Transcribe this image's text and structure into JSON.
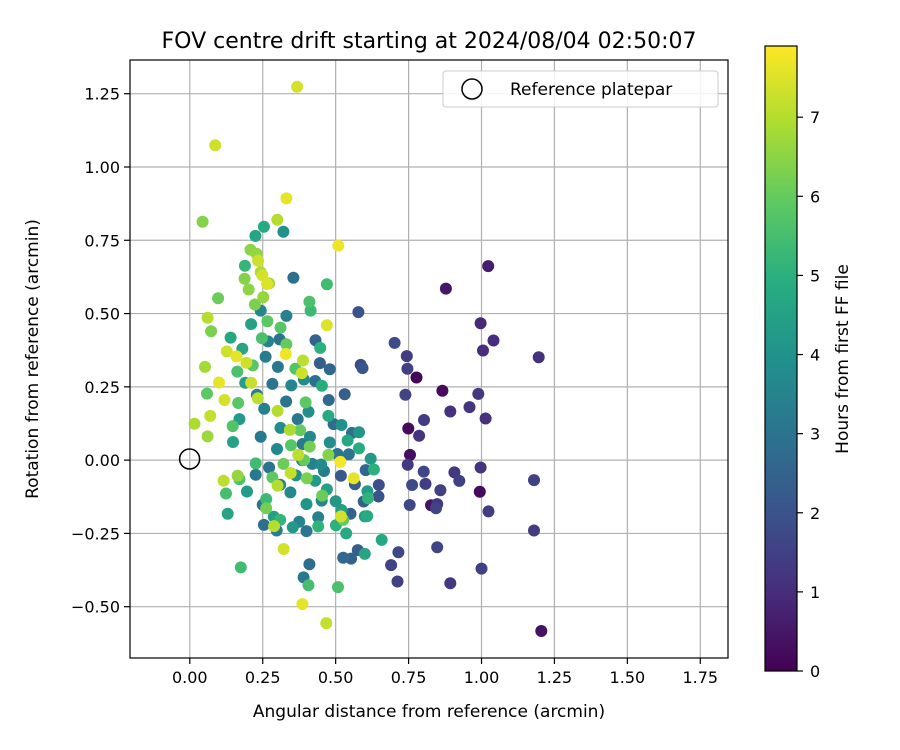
{
  "chart_data": {
    "type": "scatter",
    "title": "FOV centre drift starting at 2024/08/04 02:50:07",
    "xlabel": "Angular distance from reference (arcmin)",
    "ylabel": "Rotation from reference (arcmin)",
    "xlim": [
      -0.205,
      1.845
    ],
    "ylim": [
      -0.675,
      1.365
    ],
    "xticks": [
      0.0,
      0.25,
      0.5,
      0.75,
      1.0,
      1.25,
      1.5,
      1.75
    ],
    "xtick_labels": [
      "0.00",
      "0.25",
      "0.50",
      "0.75",
      "1.00",
      "1.25",
      "1.50",
      "1.75"
    ],
    "yticks": [
      -0.5,
      -0.25,
      0.0,
      0.25,
      0.5,
      0.75,
      1.0,
      1.25
    ],
    "ytick_labels": [
      "−0.50",
      "−0.25",
      "0.00",
      "0.25",
      "0.50",
      "0.75",
      "1.00",
      "1.25"
    ],
    "grid": true,
    "legend": {
      "position": "top-right",
      "entries": [
        "Reference platepar"
      ]
    },
    "colorbar": {
      "label": "Hours from first FF file",
      "colormap": "viridis",
      "range": [
        0,
        7.9
      ],
      "ticks": [
        0,
        1,
        2,
        3,
        4,
        5,
        6,
        7
      ],
      "tick_labels": [
        "0",
        "1",
        "2",
        "3",
        "4",
        "5",
        "6",
        "7"
      ]
    },
    "reference_point": {
      "x": 0.0,
      "y": 0.0,
      "name": "Reference platepar"
    },
    "points": [
      {
        "x": 0.878,
        "y": 0.585,
        "c": 0.5
      },
      {
        "x": 1.023,
        "y": 0.662,
        "c": 0.6
      },
      {
        "x": 0.777,
        "y": 0.282,
        "c": 0.1
      },
      {
        "x": 0.749,
        "y": 0.108,
        "c": 0.2
      },
      {
        "x": 0.755,
        "y": 0.018,
        "c": 0.3
      },
      {
        "x": 0.866,
        "y": 0.237,
        "c": 0.2
      },
      {
        "x": 0.994,
        "y": -0.108,
        "c": 0.2
      },
      {
        "x": 0.827,
        "y": -0.154,
        "c": 0.4
      },
      {
        "x": 1.205,
        "y": -0.583,
        "c": 0.4
      },
      {
        "x": 0.997,
        "y": 0.467,
        "c": 0.9
      },
      {
        "x": 1.041,
        "y": 0.408,
        "c": 1.0
      },
      {
        "x": 1.005,
        "y": 0.374,
        "c": 1.0
      },
      {
        "x": 1.196,
        "y": 0.351,
        "c": 1.1
      },
      {
        "x": 0.989,
        "y": 0.226,
        "c": 1.3
      },
      {
        "x": 0.959,
        "y": 0.181,
        "c": 1.2
      },
      {
        "x": 0.893,
        "y": 0.166,
        "c": 1.1
      },
      {
        "x": 1.014,
        "y": 0.142,
        "c": 1.1
      },
      {
        "x": 0.803,
        "y": 0.137,
        "c": 1.4
      },
      {
        "x": 0.746,
        "y": 0.312,
        "c": 1.5
      },
      {
        "x": 0.744,
        "y": 0.355,
        "c": 1.4
      },
      {
        "x": 0.739,
        "y": 0.223,
        "c": 1.6
      },
      {
        "x": 0.786,
        "y": 0.083,
        "c": 1.2
      },
      {
        "x": 0.747,
        "y": -0.016,
        "c": 1.3
      },
      {
        "x": 0.808,
        "y": -0.081,
        "c": 1.4
      },
      {
        "x": 0.848,
        "y": -0.15,
        "c": 1.3
      },
      {
        "x": 0.859,
        "y": -0.103,
        "c": 1.5
      },
      {
        "x": 0.907,
        "y": -0.042,
        "c": 1.3
      },
      {
        "x": 0.924,
        "y": -0.071,
        "c": 1.5
      },
      {
        "x": 0.997,
        "y": -0.025,
        "c": 1.2
      },
      {
        "x": 1.024,
        "y": -0.175,
        "c": 1.4
      },
      {
        "x": 1.18,
        "y": -0.068,
        "c": 1.5
      },
      {
        "x": 1.18,
        "y": -0.24,
        "c": 1.4
      },
      {
        "x": 1.0,
        "y": -0.37,
        "c": 1.5
      },
      {
        "x": 0.893,
        "y": -0.42,
        "c": 1.3
      },
      {
        "x": 0.848,
        "y": -0.297,
        "c": 1.6
      },
      {
        "x": 0.712,
        "y": -0.414,
        "c": 1.5
      },
      {
        "x": 0.715,
        "y": -0.314,
        "c": 1.7
      },
      {
        "x": 0.69,
        "y": -0.358,
        "c": 1.6
      },
      {
        "x": 0.702,
        "y": 0.4,
        "c": 1.8
      },
      {
        "x": 0.586,
        "y": 0.325,
        "c": 1.8
      },
      {
        "x": 0.844,
        "y": -0.164,
        "c": 1.6
      },
      {
        "x": 0.754,
        "y": -0.153,
        "c": 1.7
      },
      {
        "x": 0.762,
        "y": -0.085,
        "c": 1.8
      },
      {
        "x": 0.802,
        "y": -0.039,
        "c": 1.7
      },
      {
        "x": 0.648,
        "y": -0.085,
        "c": 1.9
      },
      {
        "x": 0.647,
        "y": -0.124,
        "c": 2.0
      },
      {
        "x": 0.592,
        "y": 0.314,
        "c": 2.1
      },
      {
        "x": 0.578,
        "y": 0.505,
        "c": 2.0
      },
      {
        "x": 0.446,
        "y": 0.331,
        "c": 2.4
      },
      {
        "x": 0.431,
        "y": 0.409,
        "c": 2.5
      },
      {
        "x": 0.355,
        "y": 0.622,
        "c": 2.9
      },
      {
        "x": 0.518,
        "y": -0.053,
        "c": 2.2
      },
      {
        "x": 0.566,
        "y": -0.082,
        "c": 2.3
      },
      {
        "x": 0.596,
        "y": -0.141,
        "c": 2.4
      },
      {
        "x": 0.603,
        "y": -0.034,
        "c": 2.6
      },
      {
        "x": 0.551,
        "y": -0.183,
        "c": 2.5
      },
      {
        "x": 0.576,
        "y": -0.307,
        "c": 2.3
      },
      {
        "x": 0.553,
        "y": -0.336,
        "c": 2.5
      },
      {
        "x": 0.526,
        "y": -0.333,
        "c": 2.7
      },
      {
        "x": 0.41,
        "y": -0.355,
        "c": 2.8
      },
      {
        "x": 0.39,
        "y": -0.4,
        "c": 3.2
      },
      {
        "x": 0.531,
        "y": 0.225,
        "c": 2.4
      },
      {
        "x": 0.48,
        "y": 0.31,
        "c": 2.6
      },
      {
        "x": 0.476,
        "y": 0.205,
        "c": 2.7
      },
      {
        "x": 0.43,
        "y": 0.27,
        "c": 2.9
      },
      {
        "x": 0.493,
        "y": 0.123,
        "c": 2.8
      },
      {
        "x": 0.556,
        "y": 0.093,
        "c": 2.9
      },
      {
        "x": 0.545,
        "y": 0.02,
        "c": 3.0
      },
      {
        "x": 0.506,
        "y": 0.021,
        "c": 3.1
      },
      {
        "x": 0.46,
        "y": -0.037,
        "c": 3.3
      },
      {
        "x": 0.42,
        "y": -0.013,
        "c": 3.4
      },
      {
        "x": 0.387,
        "y": 0.055,
        "c": 3.2
      },
      {
        "x": 0.37,
        "y": 0.14,
        "c": 3.1
      },
      {
        "x": 0.33,
        "y": 0.2,
        "c": 3.0
      },
      {
        "x": 0.302,
        "y": 0.318,
        "c": 3.2
      },
      {
        "x": 0.308,
        "y": 0.412,
        "c": 3.0
      },
      {
        "x": 0.331,
        "y": 0.492,
        "c": 3.4
      },
      {
        "x": 0.321,
        "y": 0.779,
        "c": 4.0
      },
      {
        "x": 0.243,
        "y": 0.51,
        "c": 3.6
      },
      {
        "x": 0.268,
        "y": 0.405,
        "c": 3.5
      },
      {
        "x": 0.26,
        "y": 0.353,
        "c": 3.3
      },
      {
        "x": 0.283,
        "y": 0.26,
        "c": 3.1
      },
      {
        "x": 0.23,
        "y": 0.223,
        "c": 3.3
      },
      {
        "x": 0.255,
        "y": 0.175,
        "c": 3.4
      },
      {
        "x": 0.243,
        "y": 0.08,
        "c": 3.2
      },
      {
        "x": 0.272,
        "y": -0.025,
        "c": 3.0
      },
      {
        "x": 0.226,
        "y": -0.05,
        "c": 3.2
      },
      {
        "x": 0.25,
        "y": -0.152,
        "c": 3.0
      },
      {
        "x": 0.254,
        "y": -0.221,
        "c": 2.9
      },
      {
        "x": 0.298,
        "y": -0.24,
        "c": 3.3
      },
      {
        "x": 0.375,
        "y": -0.21,
        "c": 3.5
      },
      {
        "x": 0.4,
        "y": -0.242,
        "c": 3.1
      },
      {
        "x": 0.44,
        "y": -0.195,
        "c": 3.4
      },
      {
        "x": 0.452,
        "y": -0.138,
        "c": 3.6
      },
      {
        "x": 0.345,
        "y": -0.11,
        "c": 3.7
      },
      {
        "x": 0.31,
        "y": -0.084,
        "c": 3.5
      },
      {
        "x": 0.299,
        "y": 0.038,
        "c": 3.7
      },
      {
        "x": 0.311,
        "y": 0.11,
        "c": 3.8
      },
      {
        "x": 0.348,
        "y": 0.255,
        "c": 3.6
      },
      {
        "x": 0.391,
        "y": 0.275,
        "c": 3.8
      },
      {
        "x": 0.407,
        "y": 0.165,
        "c": 3.9
      },
      {
        "x": 0.412,
        "y": 0.08,
        "c": 3.7
      },
      {
        "x": 0.385,
        "y": 0.0,
        "c": 3.5
      },
      {
        "x": 0.364,
        "y": -0.052,
        "c": 3.9
      },
      {
        "x": 0.45,
        "y": -0.015,
        "c": 3.8
      },
      {
        "x": 0.48,
        "y": 0.06,
        "c": 3.9
      },
      {
        "x": 0.52,
        "y": 0.12,
        "c": 4.0
      },
      {
        "x": 0.58,
        "y": 0.095,
        "c": 4.1
      },
      {
        "x": 0.62,
        "y": 0.005,
        "c": 4.2
      },
      {
        "x": 0.609,
        "y": -0.106,
        "c": 4.3
      },
      {
        "x": 0.6,
        "y": -0.192,
        "c": 4.4
      },
      {
        "x": 0.52,
        "y": -0.17,
        "c": 4.4
      },
      {
        "x": 0.5,
        "y": -0.14,
        "c": 4.2
      },
      {
        "x": 0.47,
        "y": -0.1,
        "c": 4.5
      },
      {
        "x": 0.43,
        "y": -0.07,
        "c": 4.3
      },
      {
        "x": 0.4,
        "y": -0.15,
        "c": 4.1
      },
      {
        "x": 0.353,
        "y": -0.229,
        "c": 4.2
      },
      {
        "x": 0.288,
        "y": -0.193,
        "c": 4.4
      },
      {
        "x": 0.196,
        "y": -0.107,
        "c": 4.3
      },
      {
        "x": 0.13,
        "y": -0.183,
        "c": 4.6
      },
      {
        "x": 0.148,
        "y": 0.062,
        "c": 4.5
      },
      {
        "x": 0.17,
        "y": 0.14,
        "c": 4.3
      },
      {
        "x": 0.19,
        "y": 0.264,
        "c": 4.4
      },
      {
        "x": 0.18,
        "y": 0.38,
        "c": 4.6
      },
      {
        "x": 0.14,
        "y": 0.418,
        "c": 4.7
      },
      {
        "x": 0.21,
        "y": 0.464,
        "c": 4.5
      },
      {
        "x": 0.254,
        "y": 0.796,
        "c": 4.8
      },
      {
        "x": 0.225,
        "y": 0.765,
        "c": 4.6
      },
      {
        "x": 0.189,
        "y": 0.663,
        "c": 5.2
      },
      {
        "x": 0.414,
        "y": 0.51,
        "c": 5.3
      },
      {
        "x": 0.47,
        "y": 0.6,
        "c": 5.4
      },
      {
        "x": 0.41,
        "y": 0.54,
        "c": 5.6
      },
      {
        "x": 0.447,
        "y": 0.383,
        "c": 5.0
      },
      {
        "x": 0.453,
        "y": 0.254,
        "c": 4.9
      },
      {
        "x": 0.475,
        "y": 0.151,
        "c": 4.8
      },
      {
        "x": 0.541,
        "y": 0.067,
        "c": 4.7
      },
      {
        "x": 0.58,
        "y": 0.04,
        "c": 4.9
      },
      {
        "x": 0.631,
        "y": -0.032,
        "c": 5.0
      },
      {
        "x": 0.611,
        "y": -0.13,
        "c": 5.1
      },
      {
        "x": 0.608,
        "y": -0.191,
        "c": 4.8
      },
      {
        "x": 0.658,
        "y": -0.272,
        "c": 4.7
      },
      {
        "x": 0.6,
        "y": -0.32,
        "c": 4.6
      },
      {
        "x": 0.536,
        "y": -0.25,
        "c": 4.8
      },
      {
        "x": 0.501,
        "y": -0.222,
        "c": 5.0
      },
      {
        "x": 0.44,
        "y": -0.226,
        "c": 5.1
      },
      {
        "x": 0.31,
        "y": -0.204,
        "c": 5.2
      },
      {
        "x": 0.262,
        "y": -0.133,
        "c": 5.3
      },
      {
        "x": 0.226,
        "y": -0.011,
        "c": 5.4
      },
      {
        "x": 0.17,
        "y": -0.065,
        "c": 5.6
      },
      {
        "x": 0.124,
        "y": -0.114,
        "c": 5.5
      },
      {
        "x": 0.147,
        "y": 0.116,
        "c": 5.7
      },
      {
        "x": 0.166,
        "y": 0.195,
        "c": 5.8
      },
      {
        "x": 0.163,
        "y": 0.302,
        "c": 5.6
      },
      {
        "x": 0.216,
        "y": 0.323,
        "c": 5.8
      },
      {
        "x": 0.247,
        "y": 0.416,
        "c": 5.6
      },
      {
        "x": 0.266,
        "y": 0.474,
        "c": 5.9
      },
      {
        "x": 0.311,
        "y": 0.452,
        "c": 5.8
      },
      {
        "x": 0.331,
        "y": 0.395,
        "c": 6.0
      },
      {
        "x": 0.362,
        "y": 0.312,
        "c": 5.7
      },
      {
        "x": 0.397,
        "y": 0.197,
        "c": 5.9
      },
      {
        "x": 0.378,
        "y": 0.102,
        "c": 6.0
      },
      {
        "x": 0.347,
        "y": 0.051,
        "c": 5.8
      },
      {
        "x": 0.321,
        "y": -0.013,
        "c": 6.1
      },
      {
        "x": 0.283,
        "y": -0.059,
        "c": 5.9
      },
      {
        "x": 0.262,
        "y": -0.164,
        "c": 6.2
      },
      {
        "x": 0.175,
        "y": -0.366,
        "c": 5.4
      },
      {
        "x": 0.407,
        "y": -0.427,
        "c": 5.5
      },
      {
        "x": 0.508,
        "y": -0.433,
        "c": 5.6
      },
      {
        "x": 0.526,
        "y": -0.204,
        "c": 6.0
      },
      {
        "x": 0.454,
        "y": -0.121,
        "c": 6.1
      },
      {
        "x": 0.401,
        "y": -0.062,
        "c": 6.3
      },
      {
        "x": 0.392,
        "y": 0.0,
        "c": 6.0
      },
      {
        "x": 0.411,
        "y": 0.046,
        "c": 6.2
      },
      {
        "x": 0.475,
        "y": 0.018,
        "c": 6.4
      },
      {
        "x": 0.059,
        "y": 0.227,
        "c": 5.9
      },
      {
        "x": 0.073,
        "y": 0.44,
        "c": 6.3
      },
      {
        "x": 0.097,
        "y": 0.552,
        "c": 6.1
      },
      {
        "x": 0.044,
        "y": 0.813,
        "c": 6.4
      },
      {
        "x": 0.208,
        "y": 0.718,
        "c": 6.5
      },
      {
        "x": 0.188,
        "y": 0.619,
        "c": 6.4
      },
      {
        "x": 0.202,
        "y": 0.582,
        "c": 6.5
      },
      {
        "x": 0.223,
        "y": 0.531,
        "c": 6.3
      },
      {
        "x": 0.252,
        "y": 0.556,
        "c": 6.6
      },
      {
        "x": 0.272,
        "y": 0.603,
        "c": 6.8
      },
      {
        "x": 0.243,
        "y": 0.641,
        "c": 6.9
      },
      {
        "x": 0.229,
        "y": 0.704,
        "c": 6.6
      },
      {
        "x": 0.3,
        "y": 0.82,
        "c": 7.0
      },
      {
        "x": 0.087,
        "y": 1.074,
        "c": 7.3
      },
      {
        "x": 0.368,
        "y": 1.274,
        "c": 7.4
      },
      {
        "x": 0.331,
        "y": 0.893,
        "c": 7.6
      },
      {
        "x": 0.509,
        "y": 0.732,
        "c": 7.7
      },
      {
        "x": 0.234,
        "y": 0.68,
        "c": 7.3
      },
      {
        "x": 0.249,
        "y": 0.631,
        "c": 7.4
      },
      {
        "x": 0.265,
        "y": 0.601,
        "c": 7.5
      },
      {
        "x": 0.127,
        "y": 0.371,
        "c": 7.3
      },
      {
        "x": 0.16,
        "y": 0.354,
        "c": 7.6
      },
      {
        "x": 0.194,
        "y": 0.332,
        "c": 7.3
      },
      {
        "x": 0.21,
        "y": 0.264,
        "c": 7.2
      },
      {
        "x": 0.233,
        "y": 0.211,
        "c": 7.1
      },
      {
        "x": 0.301,
        "y": 0.168,
        "c": 7.0
      },
      {
        "x": 0.343,
        "y": 0.103,
        "c": 6.9
      },
      {
        "x": 0.372,
        "y": 0.018,
        "c": 7.1
      },
      {
        "x": 0.346,
        "y": -0.044,
        "c": 7.2
      },
      {
        "x": 0.301,
        "y": -0.087,
        "c": 7.0
      },
      {
        "x": 0.119,
        "y": 0.205,
        "c": 7.4
      },
      {
        "x": 0.1,
        "y": 0.265,
        "c": 7.6
      },
      {
        "x": 0.052,
        "y": 0.318,
        "c": 6.8
      },
      {
        "x": 0.061,
        "y": 0.486,
        "c": 7.0
      },
      {
        "x": 0.016,
        "y": 0.124,
        "c": 6.9
      },
      {
        "x": 0.061,
        "y": 0.081,
        "c": 6.7
      },
      {
        "x": 0.07,
        "y": 0.151,
        "c": 7.2
      },
      {
        "x": 0.116,
        "y": -0.07,
        "c": 7.1
      },
      {
        "x": 0.164,
        "y": -0.053,
        "c": 6.6
      },
      {
        "x": 0.289,
        "y": -0.225,
        "c": 7.0
      },
      {
        "x": 0.322,
        "y": -0.303,
        "c": 7.4
      },
      {
        "x": 0.386,
        "y": -0.491,
        "c": 7.6
      },
      {
        "x": 0.468,
        "y": -0.556,
        "c": 7.2
      },
      {
        "x": 0.518,
        "y": -0.192,
        "c": 7.4
      },
      {
        "x": 0.562,
        "y": -0.062,
        "c": 7.6
      },
      {
        "x": 0.516,
        "y": -0.006,
        "c": 7.8
      },
      {
        "x": 0.47,
        "y": 0.46,
        "c": 7.5
      },
      {
        "x": 0.384,
        "y": 0.297,
        "c": 7.3
      },
      {
        "x": 0.329,
        "y": 0.362,
        "c": 7.7
      },
      {
        "x": 0.388,
        "y": 0.34,
        "c": 7.1
      }
    ]
  }
}
